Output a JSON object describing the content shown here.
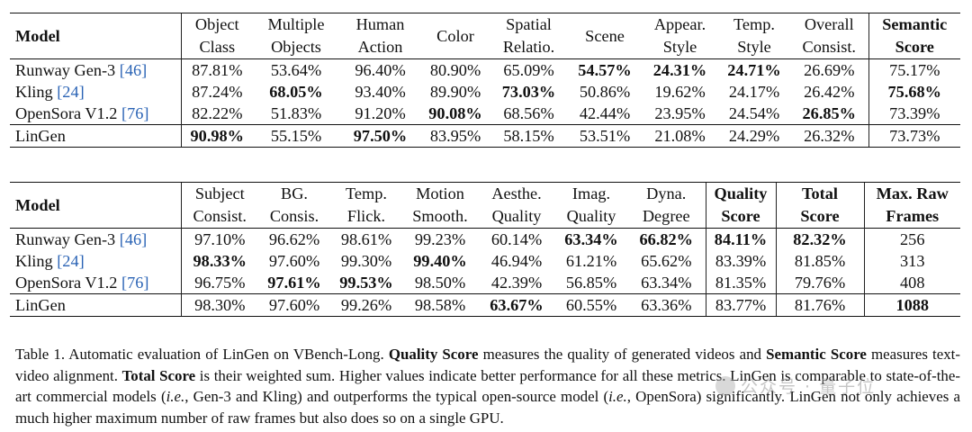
{
  "table1": {
    "header": [
      "Model",
      "Object Class",
      "Multiple Objects",
      "Human Action",
      "Color",
      "Spatial Relatio.",
      "Scene",
      "Appear. Style",
      "Temp. Style",
      "Overall Consist.",
      "Semantic Score"
    ],
    "header_lines": [
      [
        "Model"
      ],
      [
        "Object",
        "Class"
      ],
      [
        "Multiple",
        "Objects"
      ],
      [
        "Human",
        "Action"
      ],
      [
        "Color"
      ],
      [
        "Spatial",
        "Relatio."
      ],
      [
        "Scene"
      ],
      [
        "Appear.",
        "Style"
      ],
      [
        "Temp.",
        "Style"
      ],
      [
        "Overall",
        "Consist."
      ],
      [
        "Semantic",
        "Score"
      ]
    ],
    "rows": [
      {
        "model": "Runway Gen-3 ",
        "cite": "[46]",
        "values": [
          "87.81%",
          "53.64%",
          "96.40%",
          "80.90%",
          "65.09%",
          "54.57%",
          "24.31%",
          "24.71%",
          "26.69%",
          "75.17%"
        ],
        "bold": [
          5,
          6,
          7
        ]
      },
      {
        "model": "Kling ",
        "cite": "[24]",
        "values": [
          "87.24%",
          "68.05%",
          "93.40%",
          "89.90%",
          "73.03%",
          "50.86%",
          "19.62%",
          "24.17%",
          "26.42%",
          "75.68%"
        ],
        "bold": [
          1,
          4,
          9
        ]
      },
      {
        "model": "OpenSora V1.2 ",
        "cite": "[76]",
        "values": [
          "82.22%",
          "51.83%",
          "91.20%",
          "90.08%",
          "68.56%",
          "42.44%",
          "23.95%",
          "24.54%",
          "26.85%",
          "73.39%"
        ],
        "bold": [
          3,
          8
        ]
      },
      {
        "model": "LinGen",
        "cite": "",
        "values": [
          "90.98%",
          "55.15%",
          "97.50%",
          "83.95%",
          "58.15%",
          "53.51%",
          "21.08%",
          "24.29%",
          "26.32%",
          "73.73%"
        ],
        "bold": [
          0,
          2
        ]
      }
    ]
  },
  "table2": {
    "header": [
      "Model",
      "Subject Consist.",
      "BG. Consis.",
      "Temp. Flick.",
      "Motion Smooth.",
      "Aesthe. Quality",
      "Imag. Quality",
      "Dyna. Degree",
      "Quality Score",
      "Total Score",
      "Max. Raw Frames"
    ],
    "header_lines": [
      [
        "Model"
      ],
      [
        "Subject",
        "Consist."
      ],
      [
        "BG.",
        "Consis."
      ],
      [
        "Temp.",
        "Flick."
      ],
      [
        "Motion",
        "Smooth."
      ],
      [
        "Aesthe.",
        "Quality"
      ],
      [
        "Imag.",
        "Quality"
      ],
      [
        "Dyna.",
        "Degree"
      ],
      [
        "Quality",
        "Score"
      ],
      [
        "Total",
        "Score"
      ],
      [
        "Max. Raw",
        "Frames"
      ]
    ],
    "rows": [
      {
        "model": "Runway Gen-3 ",
        "cite": "[46]",
        "values": [
          "97.10%",
          "96.62%",
          "98.61%",
          "99.23%",
          "60.14%",
          "63.34%",
          "66.82%",
          "84.11%",
          "82.32%",
          "256"
        ],
        "bold": [
          5,
          6,
          7,
          8
        ]
      },
      {
        "model": "Kling ",
        "cite": "[24]",
        "values": [
          "98.33%",
          "97.60%",
          "99.30%",
          "99.40%",
          "46.94%",
          "61.21%",
          "65.62%",
          "83.39%",
          "81.85%",
          "313"
        ],
        "bold": [
          0,
          3
        ]
      },
      {
        "model": "OpenSora V1.2 ",
        "cite": "[76]",
        "values": [
          "96.75%",
          "97.61%",
          "99.53%",
          "98.50%",
          "42.39%",
          "56.85%",
          "63.34%",
          "81.35%",
          "79.76%",
          "408"
        ],
        "bold": [
          1,
          2
        ]
      },
      {
        "model": "LinGen",
        "cite": "",
        "values": [
          "98.30%",
          "97.60%",
          "99.26%",
          "98.58%",
          "63.67%",
          "60.55%",
          "63.36%",
          "83.77%",
          "81.76%",
          "1088"
        ],
        "bold": [
          4,
          9
        ]
      }
    ]
  },
  "caption": {
    "lead": "Table 1.  Automatic evaluation of LinGen on VBench-Long. ",
    "t1": "Quality Score",
    "s1": " measures the quality of generated videos and ",
    "t2": "Semantic Score",
    "s2": " measures text-video alignment. ",
    "t3": "Total Score",
    "s3": " is their weighted sum. Higher values indicate better performance for all these metrics. LinGen is comparable to state-of-the-art commercial models (",
    "ie1": "i.e.",
    "s4": ", Gen-3 and Kling) and outperforms the typical open-source model (",
    "ie2": "i.e.",
    "s5": ", OpenSora) significantly. LinGen not only achieves a much higher maximum number of raw frames but also does so on a single GPU."
  },
  "watermark": {
    "text": "公众号 · 量子位"
  }
}
